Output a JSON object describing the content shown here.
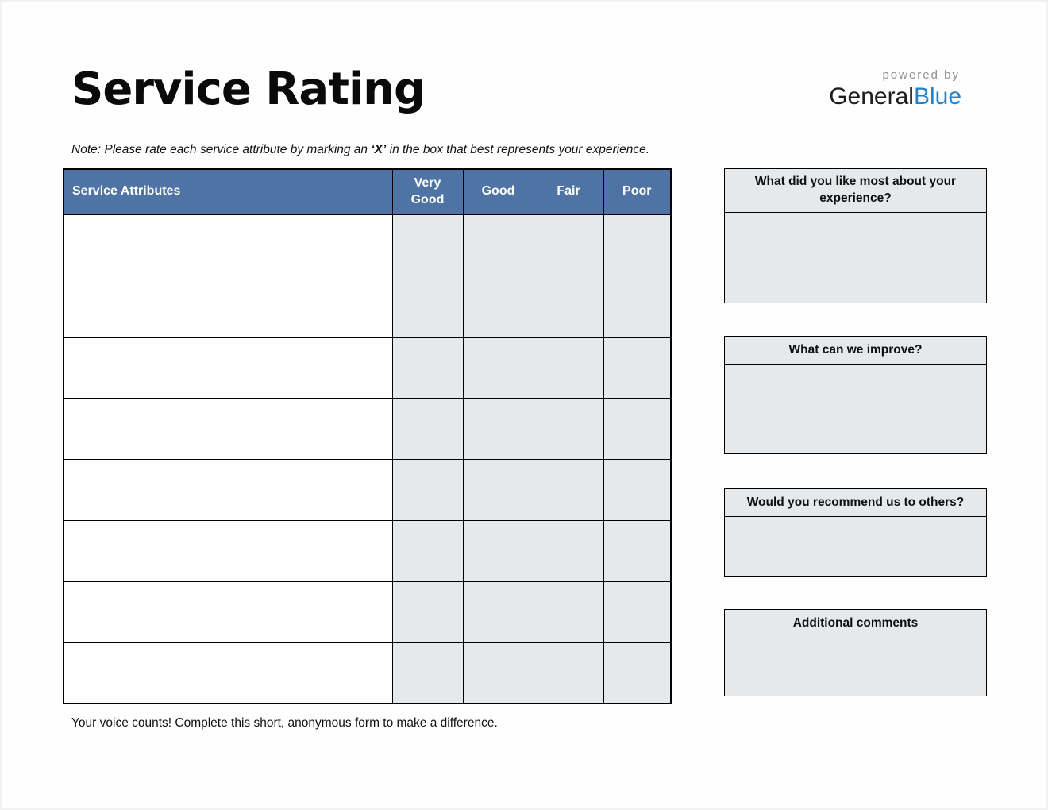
{
  "page": {
    "title": "Service Rating",
    "note_prefix": "Note: Please rate each service attribute by marking an ",
    "note_bold": "‘X’",
    "note_suffix": " in the box that best represents your experience.",
    "footer": "Your voice counts! Complete this short, anonymous form to make a difference."
  },
  "logo": {
    "powered_by": "powered by",
    "brand_dark": "General",
    "brand_blue": "Blue"
  },
  "table": {
    "headers": [
      "Service Attributes",
      "Very Good",
      "Good",
      "Fair",
      "Poor"
    ],
    "row_count": 8,
    "rows": [
      {
        "attribute": "",
        "very_good": "",
        "good": "",
        "fair": "",
        "poor": ""
      },
      {
        "attribute": "",
        "very_good": "",
        "good": "",
        "fair": "",
        "poor": ""
      },
      {
        "attribute": "",
        "very_good": "",
        "good": "",
        "fair": "",
        "poor": ""
      },
      {
        "attribute": "",
        "very_good": "",
        "good": "",
        "fair": "",
        "poor": ""
      },
      {
        "attribute": "",
        "very_good": "",
        "good": "",
        "fair": "",
        "poor": ""
      },
      {
        "attribute": "",
        "very_good": "",
        "good": "",
        "fair": "",
        "poor": ""
      },
      {
        "attribute": "",
        "very_good": "",
        "good": "",
        "fair": "",
        "poor": ""
      },
      {
        "attribute": "",
        "very_good": "",
        "good": "",
        "fair": "",
        "poor": ""
      }
    ]
  },
  "sidebar": {
    "boxes": [
      {
        "question": "What did you like most about your experience?",
        "answer": ""
      },
      {
        "question": "What can we improve?",
        "answer": ""
      },
      {
        "question": "Would you recommend us to others?",
        "answer": ""
      },
      {
        "question": "Additional comments",
        "answer": ""
      }
    ]
  },
  "colors": {
    "header_blue": "#4e73a4",
    "cell_gray": "#e5e9ec",
    "brand_blue": "#2980c4",
    "powered_gray": "#8f8f8f",
    "border_black": "#000000"
  }
}
